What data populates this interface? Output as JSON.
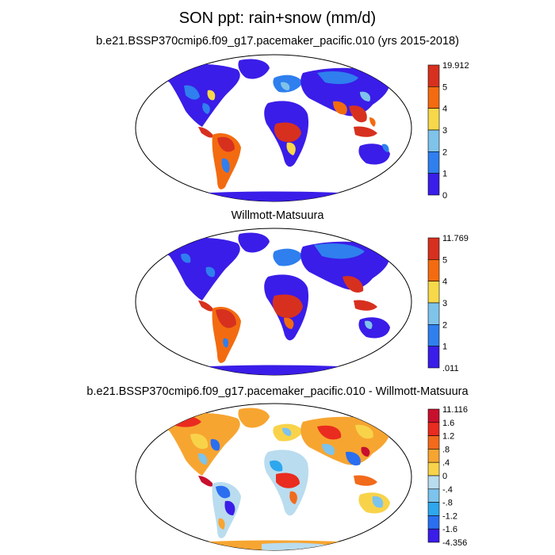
{
  "figure": {
    "title": "SON ppt: rain+snow (mm/d)"
  },
  "panels": [
    {
      "title": "b.e21.BSSP370cmip6.f09_g17.pacemaker_pacific.010 (yrs 2015-2018)",
      "colorbar": {
        "labels": [
          "19.912",
          "5",
          "4",
          "3",
          "2",
          "1",
          "0"
        ],
        "colors": [
          "#d7301f",
          "#f36b10",
          "#f6d84a",
          "#7fc3ea",
          "#2f7fee",
          "#3a1de8"
        ]
      }
    },
    {
      "title": "Willmott-Matsuura",
      "colorbar": {
        "labels": [
          "11.769",
          "5",
          "4",
          "3",
          "2",
          "1",
          ".011"
        ],
        "colors": [
          "#d7301f",
          "#f36b10",
          "#f6d84a",
          "#7fc3ea",
          "#2f7fee",
          "#3a1de8"
        ]
      }
    },
    {
      "title": "b.e21.BSSP370cmip6.f09_g17.pacemaker_pacific.010 - Willmott-Matsuura",
      "colorbar": {
        "labels": [
          "11.116",
          "1.6",
          "1.2",
          ".8",
          ".4",
          "0",
          "-.4",
          "-.8",
          "-1.2",
          "-1.6",
          "-4.356"
        ],
        "colors": [
          "#c8102e",
          "#ea2b1f",
          "#f26a1b",
          "#f7a531",
          "#f8d34a",
          "#b9dcef",
          "#7cc3ee",
          "#2ea7ee",
          "#2a6ff0",
          "#3a1de8"
        ]
      }
    }
  ]
}
